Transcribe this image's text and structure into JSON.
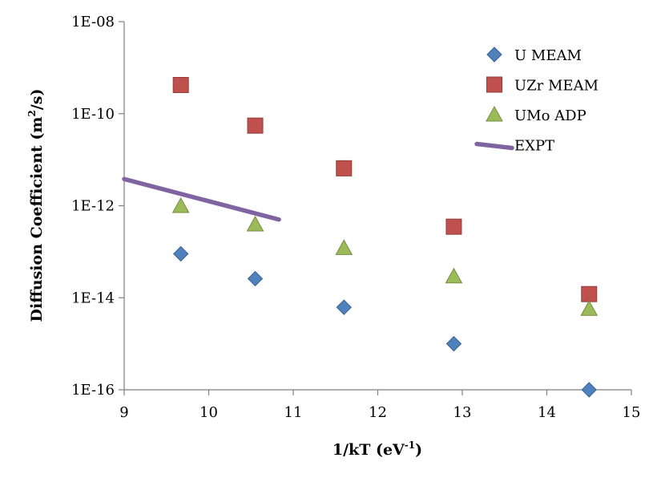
{
  "chart_data": {
    "type": "scatter",
    "xlabel": "1/kT (eV",
    "xlabel_sup": "-1",
    "xlabel_end": ")",
    "ylabel": "Diffusion Coefficient (m",
    "ylabel_sup": "2",
    "ylabel_end": "/s)",
    "xlim": [
      9,
      15
    ],
    "ylim": [
      1e-16,
      1e-08
    ],
    "yscale": "log",
    "x_ticks": [
      9,
      10,
      11,
      12,
      13,
      14,
      15
    ],
    "x_tick_labels": [
      "9",
      "10",
      "11",
      "12",
      "13",
      "14",
      "15"
    ],
    "y_ticks": [
      1e-16,
      1e-14,
      1e-12,
      1e-10,
      1e-08
    ],
    "y_tick_labels": [
      "1E-16",
      "1E-14",
      "1E-12",
      "1E-10",
      "1E-08"
    ],
    "grid": false,
    "legend_position": "top-right",
    "series": [
      {
        "name": "U MEAM",
        "marker": "diamond",
        "color": "#4f81bd",
        "points": [
          [
            9.67,
            9e-14
          ],
          [
            10.55,
            2.6e-14
          ],
          [
            11.6,
            6.2e-15
          ],
          [
            12.9,
            1e-15
          ],
          [
            14.5,
            1e-16
          ]
        ]
      },
      {
        "name": "UZr MEAM",
        "marker": "square",
        "color": "#c0504d",
        "points": [
          [
            9.67,
            4.2e-10
          ],
          [
            10.55,
            5.5e-11
          ],
          [
            11.6,
            6.5e-12
          ],
          [
            12.9,
            3.5e-13
          ],
          [
            14.5,
            1.2e-14
          ]
        ]
      },
      {
        "name": "UMo ADP",
        "marker": "triangle",
        "color": "#9bbb59",
        "points": [
          [
            9.67,
            9.8e-13
          ],
          [
            10.55,
            3.9e-13
          ],
          [
            11.6,
            1.2e-13
          ],
          [
            12.9,
            2.9e-14
          ],
          [
            14.5,
            5.7e-15
          ]
        ]
      },
      {
        "name": "EXPT",
        "marker": "line",
        "color": "#8064a2",
        "points": [
          [
            9.0,
            3.8e-12
          ],
          [
            10.83,
            5e-13
          ]
        ]
      }
    ]
  }
}
